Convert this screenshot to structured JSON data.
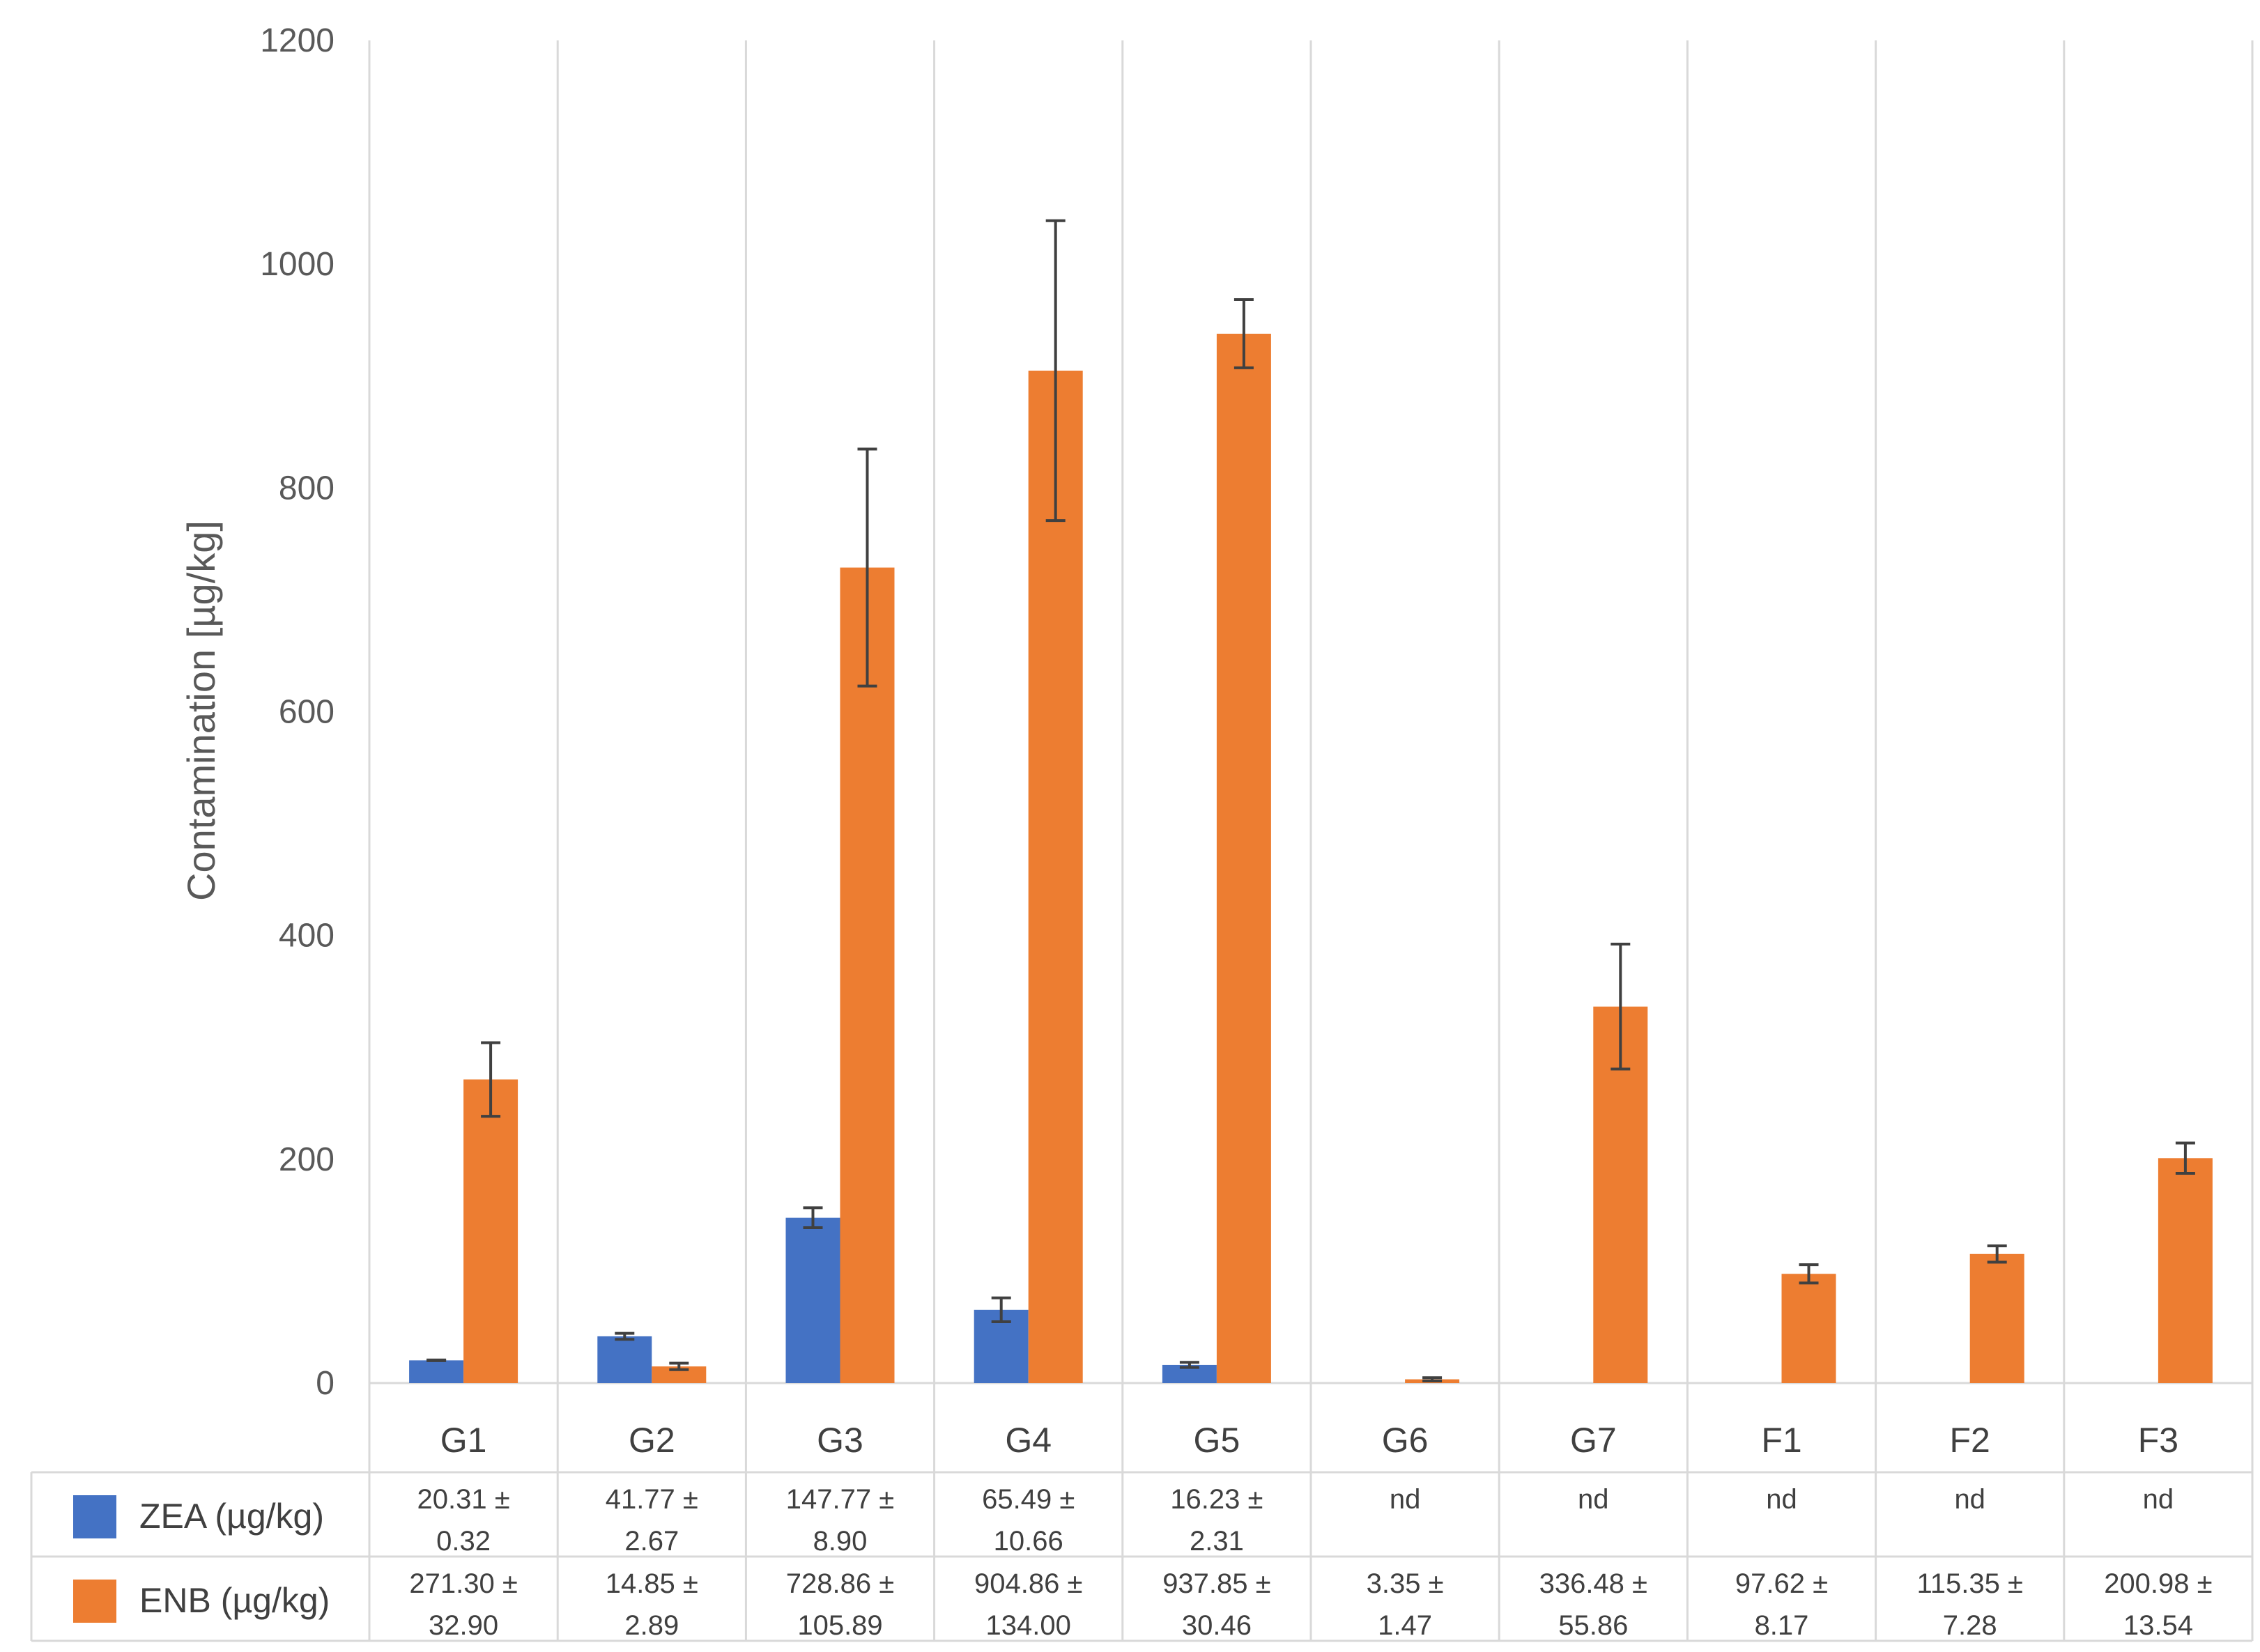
{
  "chart_data": {
    "type": "bar",
    "title": "",
    "xlabel": "",
    "ylabel": "Contamination [µg/kg]",
    "ylim": [
      0,
      1200
    ],
    "yticks": [
      0,
      200,
      400,
      600,
      800,
      1000,
      1200
    ],
    "grid": "vertical category separators",
    "legend": "data table left",
    "categories": [
      "G1",
      "G2",
      "G3",
      "G4",
      "G5",
      "G6",
      "G7",
      "F1",
      "F2",
      "F3"
    ],
    "series": [
      {
        "name": "ZEA (µg/kg)",
        "color": "#4472C4",
        "values": [
          20.31,
          41.77,
          147.77,
          65.49,
          16.23,
          null,
          null,
          null,
          null,
          null
        ],
        "errors": [
          0.32,
          2.67,
          8.9,
          10.66,
          2.31,
          null,
          null,
          null,
          null,
          null
        ],
        "table": [
          [
            "20.31 ±",
            "0.32"
          ],
          [
            "41.77 ±",
            "2.67"
          ],
          [
            "147.77 ±",
            "8.90"
          ],
          [
            "65.49 ±",
            "10.66"
          ],
          [
            "16.23 ±",
            "2.31"
          ],
          [
            "nd",
            ""
          ],
          [
            "nd",
            ""
          ],
          [
            "nd",
            ""
          ],
          [
            "nd",
            ""
          ],
          [
            "nd",
            ""
          ]
        ]
      },
      {
        "name": "ENB (µg/kg)",
        "color": "#ED7D31",
        "values": [
          271.3,
          14.85,
          728.86,
          904.86,
          937.85,
          3.35,
          336.48,
          97.62,
          115.35,
          200.98
        ],
        "errors": [
          32.9,
          2.89,
          105.89,
          134.0,
          30.46,
          1.47,
          55.86,
          8.17,
          7.28,
          13.54
        ],
        "table": [
          [
            "271.30 ±",
            "32.90"
          ],
          [
            "14.85 ±",
            "2.89"
          ],
          [
            "728.86 ±",
            "105.89"
          ],
          [
            "904.86 ±",
            "134.00"
          ],
          [
            "937.85 ±",
            "30.46"
          ],
          [
            "3.35 ±",
            "1.47"
          ],
          [
            "336.48 ±",
            "55.86"
          ],
          [
            "97.62 ±",
            "8.17"
          ],
          [
            "115.35 ±",
            "7.28"
          ],
          [
            "200.98 ±",
            "13.54"
          ]
        ]
      }
    ]
  }
}
